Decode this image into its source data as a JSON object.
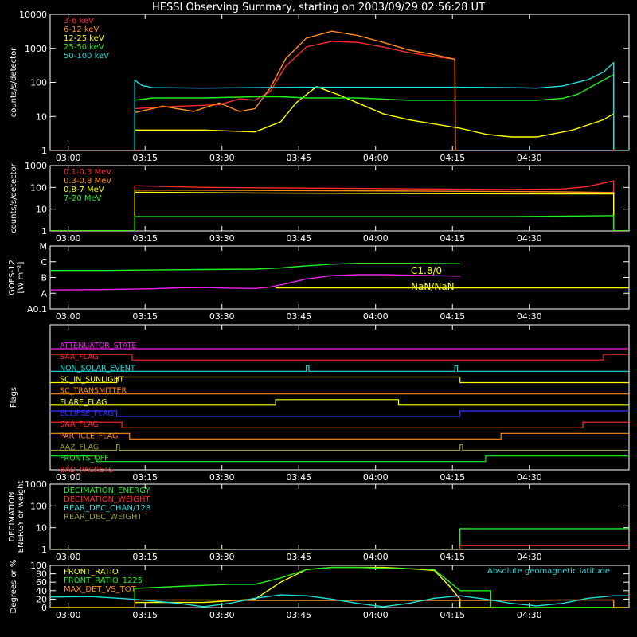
{
  "title": "HESSI Observing Summary, starting on 2003/09/29 02:56:28 UT",
  "colors": {
    "background": "#000000",
    "axis": "#ffffff",
    "red": "#ff2a2a",
    "orange": "#ff8c1a",
    "yellow": "#ffff00",
    "green": "#22ee22",
    "cyan": "#22dddd",
    "magenta": "#ee22ee",
    "blue": "#3333ff",
    "olive": "#999933"
  },
  "time_ticks": [
    "03:00",
    "03:15",
    "03:30",
    "03:45",
    "04:00",
    "04:15",
    "04:30"
  ],
  "chart_data": [
    {
      "type": "line",
      "panel": "rates-low",
      "ylabel": "counts/s/detector",
      "yscale": "log",
      "ylim": [
        1,
        10000
      ],
      "y_ticks": [
        1,
        10,
        100,
        1000,
        10000
      ],
      "y_tick_labels": [
        "1",
        "10",
        "100",
        "1000",
        "10000"
      ],
      "x_unit": "minutes from 02:56:28",
      "xlim": [
        0,
        113
      ],
      "series": [
        {
          "name": "3-6 keV",
          "color": "#ff2a2a",
          "x": [
            0,
            16.5,
            16.5,
            25,
            33,
            37,
            40,
            43,
            46,
            50,
            55,
            60,
            65,
            70,
            75,
            79,
            79,
            79.1,
            113
          ],
          "y": [
            1,
            1,
            17,
            20,
            22,
            33,
            30,
            55,
            300,
            1100,
            1600,
            1500,
            1100,
            750,
            580,
            480,
            480,
            1,
            1
          ]
        },
        {
          "name": "6-12 keV",
          "color": "#ff8c1a",
          "x": [
            0,
            16.5,
            16.5,
            22,
            28,
            33,
            37,
            40,
            43,
            46,
            50,
            55,
            60,
            65,
            70,
            75,
            79,
            79,
            79.1,
            113
          ],
          "y": [
            1,
            1,
            13,
            20,
            14,
            25,
            14,
            17,
            70,
            500,
            2000,
            3200,
            2400,
            1500,
            900,
            650,
            480,
            480,
            1,
            1
          ]
        },
        {
          "name": "12-25 keV",
          "color": "#ffff00",
          "x": [
            0,
            16.5,
            16.5,
            30,
            40,
            45,
            48,
            52,
            56,
            60,
            65,
            70,
            75,
            80,
            85,
            90,
            95,
            102,
            108,
            110,
            110,
            113
          ],
          "y": [
            1,
            1,
            4,
            4,
            3.5,
            7,
            25,
            75,
            45,
            25,
            12,
            8,
            6,
            4.5,
            3,
            2.5,
            2.5,
            4,
            8,
            12,
            1,
            1
          ]
        },
        {
          "name": "25-50 keV",
          "color": "#22ee22",
          "x": [
            0,
            16.5,
            16.5,
            20,
            30,
            40,
            45,
            50,
            60,
            70,
            80,
            90,
            95,
            100,
            103,
            106,
            110,
            110,
            113
          ],
          "y": [
            1,
            1,
            30,
            35,
            35,
            38,
            38,
            35,
            35,
            30,
            30,
            30,
            30,
            34,
            45,
            80,
            170,
            1,
            1
          ]
        },
        {
          "name": "50-100 keV",
          "color": "#22dddd",
          "x": [
            0,
            16.5,
            16.5,
            18,
            20,
            30,
            40,
            50,
            60,
            70,
            80,
            90,
            95,
            100,
            105,
            108,
            110,
            110,
            113
          ],
          "y": [
            1,
            1,
            115,
            80,
            70,
            68,
            70,
            72,
            72,
            72,
            72,
            70,
            68,
            78,
            120,
            200,
            380,
            1,
            1
          ]
        }
      ]
    },
    {
      "type": "line",
      "panel": "rates-high",
      "ylabel": "counts/s/detector",
      "yscale": "log",
      "ylim": [
        1,
        1000
      ],
      "y_ticks": [
        1,
        10,
        100,
        1000
      ],
      "y_tick_labels": [
        "1",
        "10",
        "100",
        "1000"
      ],
      "x_unit": "minutes from 02:56:28",
      "xlim": [
        0,
        113
      ],
      "series": [
        {
          "name": "0.1-0.3 MeV",
          "color": "#ff2a2a",
          "x": [
            0,
            16.5,
            16.5,
            30,
            60,
            90,
            100,
            105,
            110,
            110,
            113
          ],
          "y": [
            1,
            1,
            120,
            100,
            90,
            80,
            85,
            110,
            200,
            1,
            1
          ]
        },
        {
          "name": "0.3-0.8 MeV",
          "color": "#ff8c1a",
          "x": [
            0,
            16.5,
            16.5,
            40,
            70,
            100,
            110,
            110,
            113
          ],
          "y": [
            1,
            1,
            75,
            72,
            68,
            62,
            58,
            1,
            1
          ]
        },
        {
          "name": "0.8-7 MeV",
          "color": "#ffff00",
          "x": [
            0,
            16.5,
            16.5,
            40,
            70,
            100,
            110,
            110,
            113
          ],
          "y": [
            1,
            1,
            60,
            55,
            52,
            50,
            50,
            1,
            1
          ]
        },
        {
          "name": "7-20 MeV",
          "color": "#22ee22",
          "x": [
            0,
            16.5,
            16.5,
            30,
            60,
            90,
            110,
            110,
            113
          ],
          "y": [
            1,
            1,
            4.5,
            4.5,
            4.5,
            4.5,
            5,
            1,
            1
          ]
        }
      ]
    },
    {
      "type": "line",
      "panel": "goes",
      "ylabel": "GOES-12",
      "ylabel2": "[W m⁻²]",
      "yscale": "log",
      "ylim": [
        1e-08,
        0.0001
      ],
      "y_ticks": [
        1e-08,
        1e-07,
        1e-06,
        1e-05,
        0.0001
      ],
      "y_tick_labels": [
        "A0.1",
        "A",
        "B",
        "C",
        "M"
      ],
      "x_unit": "minutes from 02:56:28",
      "xlim": [
        0,
        113
      ],
      "annotations": [
        "C1.8/0",
        "NaN/NaN"
      ],
      "series": [
        {
          "color": "#22ee22",
          "x": [
            0,
            10,
            20,
            30,
            40,
            45,
            50,
            55,
            60,
            65,
            70,
            75,
            80
          ],
          "y": [
            2.8e-06,
            2.8e-06,
            3e-06,
            3.2e-06,
            3.4e-06,
            4e-06,
            5.5e-06,
            7e-06,
            8e-06,
            8e-06,
            8e-06,
            7.8e-06,
            7.5e-06
          ]
        },
        {
          "color": "#ee22ee",
          "x": [
            0,
            10,
            20,
            25,
            30,
            35,
            40,
            43,
            46,
            50,
            55,
            60,
            65,
            70,
            75,
            80
          ],
          "y": [
            1.6e-07,
            1.7e-07,
            1.9e-07,
            2.2e-07,
            2.3e-07,
            2.1e-07,
            2e-07,
            2.5e-07,
            4e-07,
            8e-07,
            1.3e-06,
            1.5e-06,
            1.5e-06,
            1.4e-06,
            1.3e-06,
            1.2e-06
          ]
        },
        {
          "color": "#ffff00",
          "x": [
            44,
            113
          ],
          "y": [
            2.2e-07,
            2.2e-07
          ]
        }
      ]
    },
    {
      "type": "line",
      "panel": "flags",
      "ylabel": "Flags",
      "x_unit": "minutes from 02:56:28",
      "xlim": [
        0,
        113
      ],
      "series": [
        {
          "name": "ATTENUATOR_STATE",
          "color": "#ee22ee",
          "x": [
            0,
            113
          ],
          "y": [
            0,
            0
          ]
        },
        {
          "name": "SAA_FLAG",
          "color": "#ff2a2a",
          "x": [
            0,
            16,
            16,
            108,
            108,
            113
          ],
          "y": [
            1,
            1,
            0,
            0,
            1,
            1
          ]
        },
        {
          "name": "NON_SOLAR_EVENT",
          "color": "#22dddd",
          "x": [
            0,
            50,
            50,
            50.5,
            50.5,
            79,
            79,
            79.5,
            79.5,
            113
          ],
          "y": [
            0,
            0,
            1,
            1,
            0,
            0,
            1,
            1,
            0,
            0
          ]
        },
        {
          "name": "SC_IN_SUNLIGHT",
          "color": "#ffff00",
          "x": [
            0,
            13,
            13,
            80,
            80,
            113
          ],
          "y": [
            0,
            0,
            1,
            1,
            0,
            0
          ]
        },
        {
          "name": "SC_TRANSMITTER",
          "color": "#ff8c1a",
          "x": [
            0,
            113
          ],
          "y": [
            0,
            0
          ]
        },
        {
          "name": "FLARE_FLAG",
          "color": "#ffff00",
          "x": [
            0,
            44,
            44,
            68,
            68,
            113
          ],
          "y": [
            0,
            0,
            1,
            1,
            0,
            0
          ]
        },
        {
          "name": "ECLIPSE_FLAG",
          "color": "#3333ff",
          "x": [
            0,
            13,
            13,
            80,
            80,
            113
          ],
          "y": [
            1,
            1,
            0,
            0,
            1,
            1
          ]
        },
        {
          "name": "SAA_FLAG",
          "color": "#ff2a2a",
          "x": [
            0,
            14,
            14,
            104,
            104,
            113
          ],
          "y": [
            1,
            1,
            0,
            0,
            1,
            1
          ]
        },
        {
          "name": "PARTICLE_FLAG",
          "color": "#ff8c1a",
          "x": [
            0,
            15.5,
            15.5,
            88,
            88,
            113
          ],
          "y": [
            1,
            1,
            0,
            0,
            1,
            1
          ]
        },
        {
          "name": "AAZ_FLAG",
          "color": "#999933",
          "x": [
            0,
            13,
            13,
            13.5,
            13.5,
            80,
            80,
            80.5,
            80.5,
            113
          ],
          "y": [
            0,
            0,
            1,
            1,
            0,
            0,
            1,
            1,
            0,
            0
          ]
        },
        {
          "name": "FRONTS_OFF",
          "color": "#22ee22",
          "x": [
            0,
            9,
            9,
            85,
            85,
            113
          ],
          "y": [
            1,
            1,
            0,
            0,
            1,
            1
          ]
        },
        {
          "name": "BAD_PACKETS",
          "color": "#ff2a2a",
          "x": [
            0,
            113
          ],
          "y": [
            0,
            0
          ]
        }
      ]
    },
    {
      "type": "line",
      "panel": "decimation",
      "ylabel": "DECIMATION",
      "ylabel2": "ENERGY or weight",
      "yscale": "log",
      "ylim": [
        1,
        1000
      ],
      "y_ticks": [
        1,
        10,
        100,
        1000
      ],
      "y_tick_labels": [
        "1",
        "10",
        "100",
        "1000"
      ],
      "x_unit": "minutes from 02:56:28",
      "xlim": [
        0,
        113
      ],
      "series": [
        {
          "name": "DECIMATION_ENERGY",
          "color": "#22ee22",
          "x": [
            0,
            80,
            80,
            113
          ],
          "y": [
            1,
            1,
            9,
            9
          ]
        },
        {
          "name": "DECIMATION_WEIGHT",
          "color": "#ff2a2a",
          "x": [
            0,
            80,
            80,
            113
          ],
          "y": [
            1,
            1,
            1.5,
            1.5
          ]
        },
        {
          "name": "REAR_DEC_CHAN/128",
          "color": "#22dddd",
          "x": [
            0,
            113
          ],
          "y": [
            1,
            1
          ]
        },
        {
          "name": "REAR_DEC_WEIGHT",
          "color": "#999933",
          "x": [
            0,
            113
          ],
          "y": [
            1,
            1
          ]
        }
      ]
    },
    {
      "type": "line",
      "panel": "ratios",
      "ylabel": "Degrees or %",
      "ylim": [
        0,
        100
      ],
      "y_ticks": [
        0,
        20,
        40,
        60,
        80,
        100
      ],
      "y_tick_labels": [
        "0",
        "20",
        "40",
        "60",
        "80",
        "100"
      ],
      "x_unit": "minutes from 02:56:28",
      "xlim": [
        0,
        113
      ],
      "right_label": "Absolute geomagnetic latitude",
      "series": [
        {
          "name": "FRONT_RATIO",
          "color": "#ffff00",
          "x": [
            0,
            16.5,
            16.5,
            30,
            40,
            45,
            50,
            55,
            60,
            65,
            70,
            75,
            78,
            80,
            80,
            113
          ],
          "y": [
            0,
            0,
            12,
            12,
            20,
            60,
            90,
            95,
            95,
            95,
            92,
            88,
            50,
            20,
            0,
            0
          ]
        },
        {
          "name": "FRONT_RATIO_1225",
          "color": "#22ee22",
          "x": [
            0,
            16.5,
            16.5,
            25,
            35,
            40,
            45,
            50,
            55,
            60,
            65,
            70,
            75,
            78,
            80,
            86,
            86,
            113
          ],
          "y": [
            0,
            0,
            45,
            50,
            55,
            55,
            70,
            90,
            95,
            95,
            93,
            92,
            90,
            60,
            40,
            40,
            0,
            0
          ]
        },
        {
          "name": "MAX_DET_VS_TOT",
          "color": "#ff8c1a",
          "x": [
            0,
            16.5,
            16.5,
            30,
            40,
            50,
            60,
            70,
            80,
            90,
            100,
            110,
            110,
            113
          ],
          "y": [
            0,
            0,
            18,
            18,
            17,
            17,
            17,
            17,
            17,
            17,
            18,
            18,
            0,
            0
          ]
        },
        {
          "name": "Absolute geomagnetic latitude",
          "color": "#22dddd",
          "x": [
            0,
            8,
            16,
            25,
            30,
            35,
            40,
            45,
            50,
            55,
            60,
            65,
            70,
            75,
            80,
            85,
            90,
            95,
            100,
            105,
            110,
            113
          ],
          "y": [
            25,
            26,
            20,
            10,
            2,
            10,
            22,
            30,
            28,
            20,
            10,
            2,
            10,
            22,
            28,
            20,
            10,
            4,
            10,
            22,
            28,
            28
          ]
        }
      ]
    }
  ]
}
